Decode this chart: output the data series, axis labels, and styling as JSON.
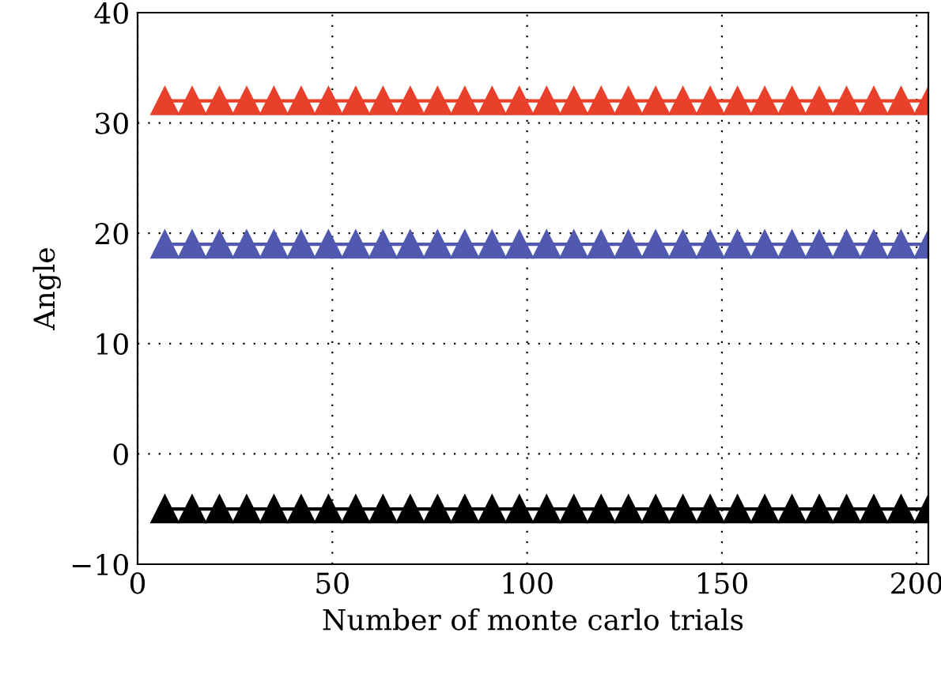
{
  "chart_data": {
    "type": "line",
    "xlabel": "Number of monte carlo trials",
    "ylabel": "Angle",
    "x": [
      7,
      14,
      21,
      28,
      35,
      42,
      49,
      56,
      63,
      70,
      77,
      84,
      91,
      98,
      105,
      112,
      119,
      126,
      133,
      140,
      147,
      154,
      161,
      168,
      175,
      182,
      189,
      196,
      203
    ],
    "series": [
      {
        "color": "#e8402a",
        "values": [
          32,
          32,
          32,
          32,
          32,
          32,
          32,
          32,
          32,
          32,
          32,
          32,
          32,
          32,
          32,
          32,
          32,
          32,
          32,
          32,
          32,
          32,
          32,
          32,
          32,
          32,
          32,
          32,
          32
        ]
      },
      {
        "color": "#5058b0",
        "values": [
          19,
          19,
          19,
          19,
          19,
          19,
          19,
          19,
          19,
          19,
          19,
          19,
          19,
          19,
          19,
          19,
          19,
          19,
          19,
          19,
          19,
          19,
          19,
          19,
          19,
          19,
          19,
          19,
          19
        ]
      },
      {
        "color": "#000000",
        "values": [
          -5,
          -5,
          -5,
          -5,
          -5,
          -5,
          -5,
          -5,
          -5,
          -5,
          -5,
          -5,
          -5,
          -5,
          -5,
          -5,
          -5,
          -5,
          -5,
          -5,
          -5,
          -5,
          -5,
          -5,
          -5,
          -5,
          -5,
          -5,
          -5
        ]
      }
    ],
    "xlim": [
      0,
      203
    ],
    "xticks": [
      0,
      50,
      100,
      150,
      200
    ],
    "ylim": [
      -10,
      40
    ],
    "yticks": [
      {
        "value": -10,
        "label": "−10"
      },
      0,
      10,
      20,
      30,
      40
    ],
    "grid": true,
    "marker": "triangle",
    "line_style": "solid",
    "legend": false
  }
}
